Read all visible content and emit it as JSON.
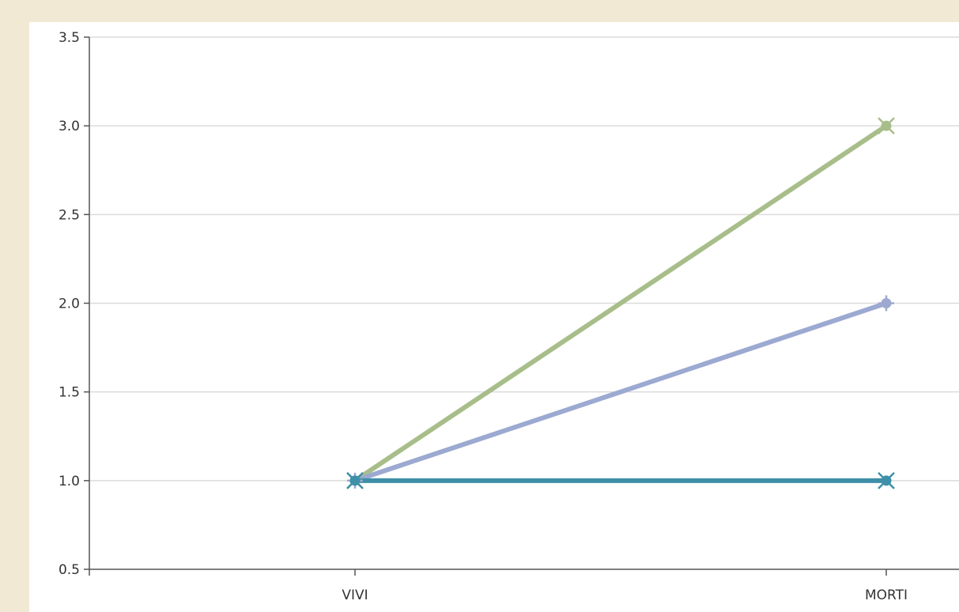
{
  "chart_data": {
    "type": "line",
    "categories": [
      "VIVI",
      "MORTI"
    ],
    "series": [
      {
        "color": "#a8be8a",
        "marker": "x-cross",
        "values": [
          1.0,
          3.0
        ]
      },
      {
        "color": "#9ca9d1",
        "marker": "plus",
        "values": [
          1.0,
          2.0
        ]
      },
      {
        "color": "#3e8fa8",
        "marker": "x-cross",
        "values": [
          1.0,
          1.0
        ]
      }
    ],
    "y_ticks": [
      "0.5",
      "1.0",
      "1.5",
      "2.0",
      "2.5",
      "3.0",
      "3.5"
    ],
    "ylim": [
      0.5,
      3.5
    ],
    "grid": true,
    "grid_axis": "y",
    "title": "",
    "xlabel": "",
    "ylabel": ""
  }
}
